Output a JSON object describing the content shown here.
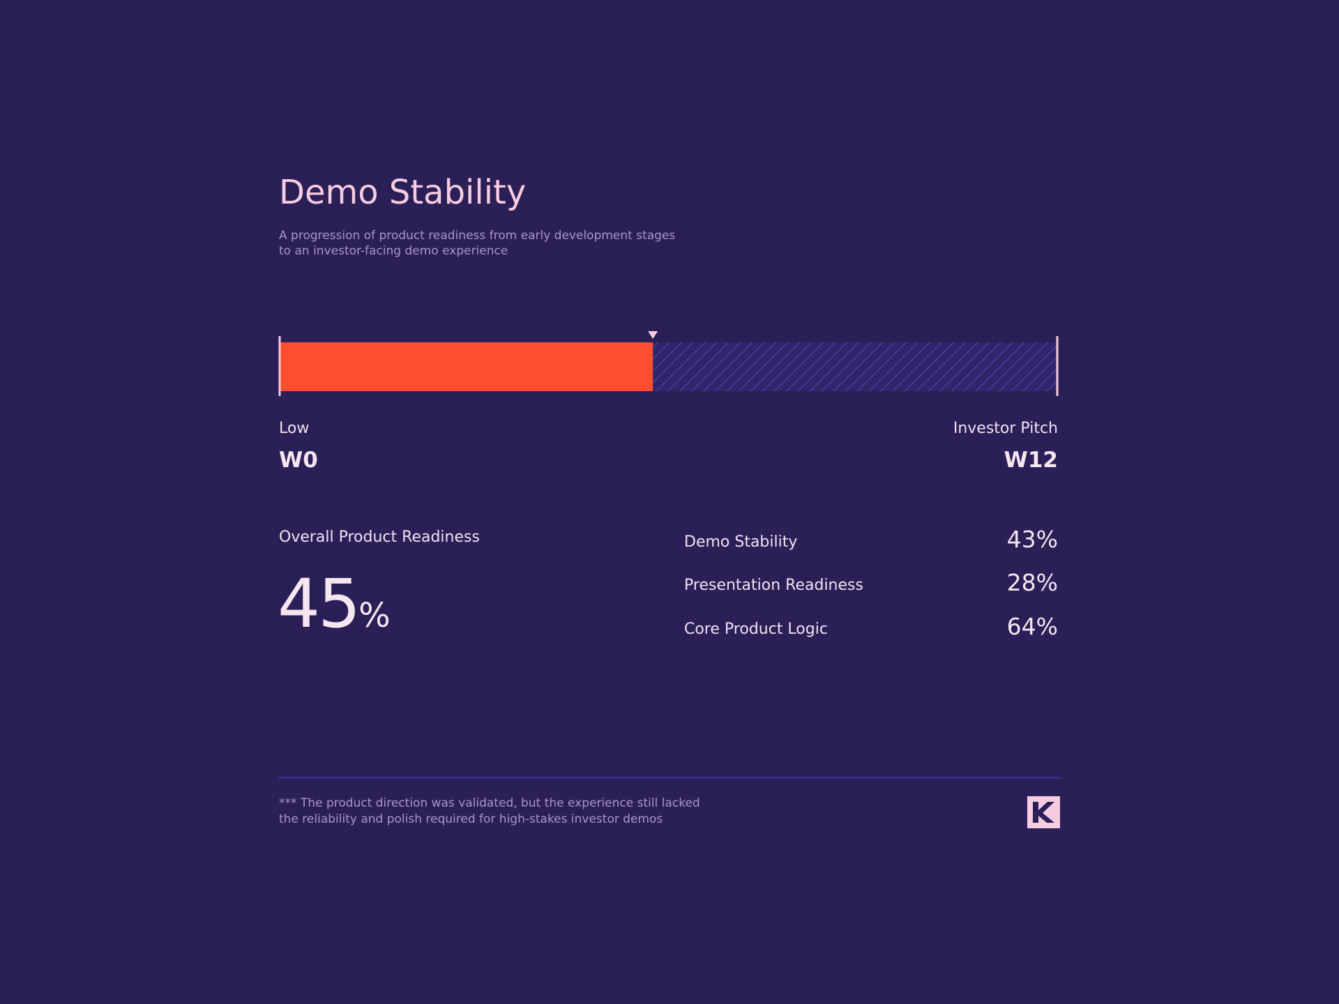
{
  "header": {
    "title": "Demo Stability",
    "subtitle_lines": [
      "A progression of product readiness from early development stages",
      "to an investor-facing demo experience"
    ]
  },
  "progress": {
    "value": 48,
    "range": [
      0,
      100
    ],
    "start_label": "Low",
    "start_week": "W0",
    "end_label": "Investor Pitch",
    "end_week": "W12"
  },
  "overall": {
    "label": "Overall Product Readiness",
    "value": "45",
    "unit": "%"
  },
  "metrics": [
    {
      "label": "Demo Stability",
      "value": "43%"
    },
    {
      "label": "Presentation Readiness",
      "value": "28%"
    },
    {
      "label": "Core Product Logic",
      "value": "64%"
    }
  ],
  "footer": {
    "note_lines": [
      "*** The product direction was validated, but the experience still lacked",
      "the reliability and polish required for high-stakes investor demos"
    ]
  }
}
